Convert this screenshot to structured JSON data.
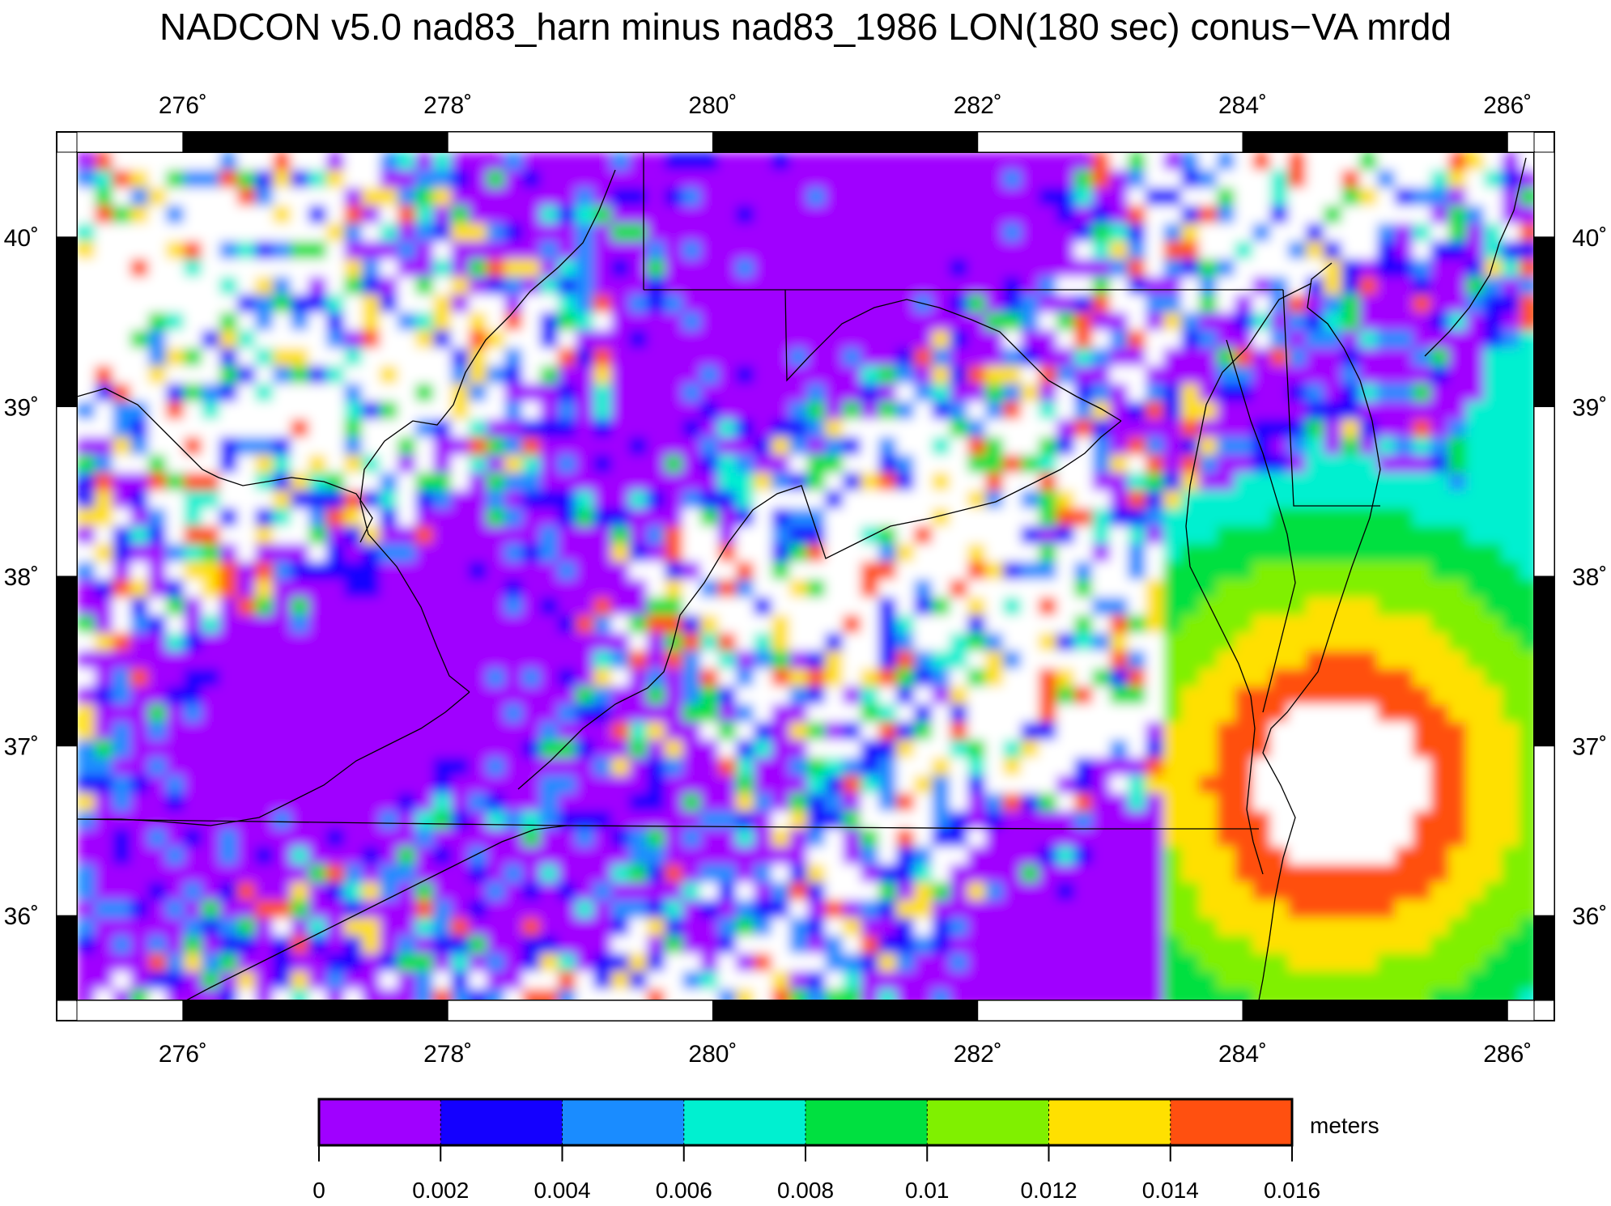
{
  "title": "NADCON v5.0 nad83_harn minus nad83_1986 LON(180 sec) conus−VA mrdd",
  "map": {
    "lon_range": [
      275.2,
      286.2
    ],
    "lat_range": [
      35.5,
      40.5
    ],
    "lon_ticks": [
      "276˚",
      "278˚",
      "280˚",
      "282˚",
      "284˚",
      "286˚"
    ],
    "lon_tick_values": [
      276,
      278,
      280,
      282,
      284,
      286
    ],
    "lat_ticks": [
      "36˚",
      "37˚",
      "38˚",
      "39˚",
      "40˚"
    ],
    "lat_tick_values": [
      36,
      37,
      38,
      39,
      40
    ]
  },
  "colorbar": {
    "unit": "meters",
    "labels": [
      "0",
      "0.002",
      "0.004",
      "0.006",
      "0.008",
      "0.01",
      "0.012",
      "0.014",
      "0.016"
    ],
    "colors": [
      "#a000ff",
      "#1400ff",
      "#1a8cff",
      "#00f0d0",
      "#00e040",
      "#80f000",
      "#ffe000",
      "#ff5010"
    ]
  }
}
